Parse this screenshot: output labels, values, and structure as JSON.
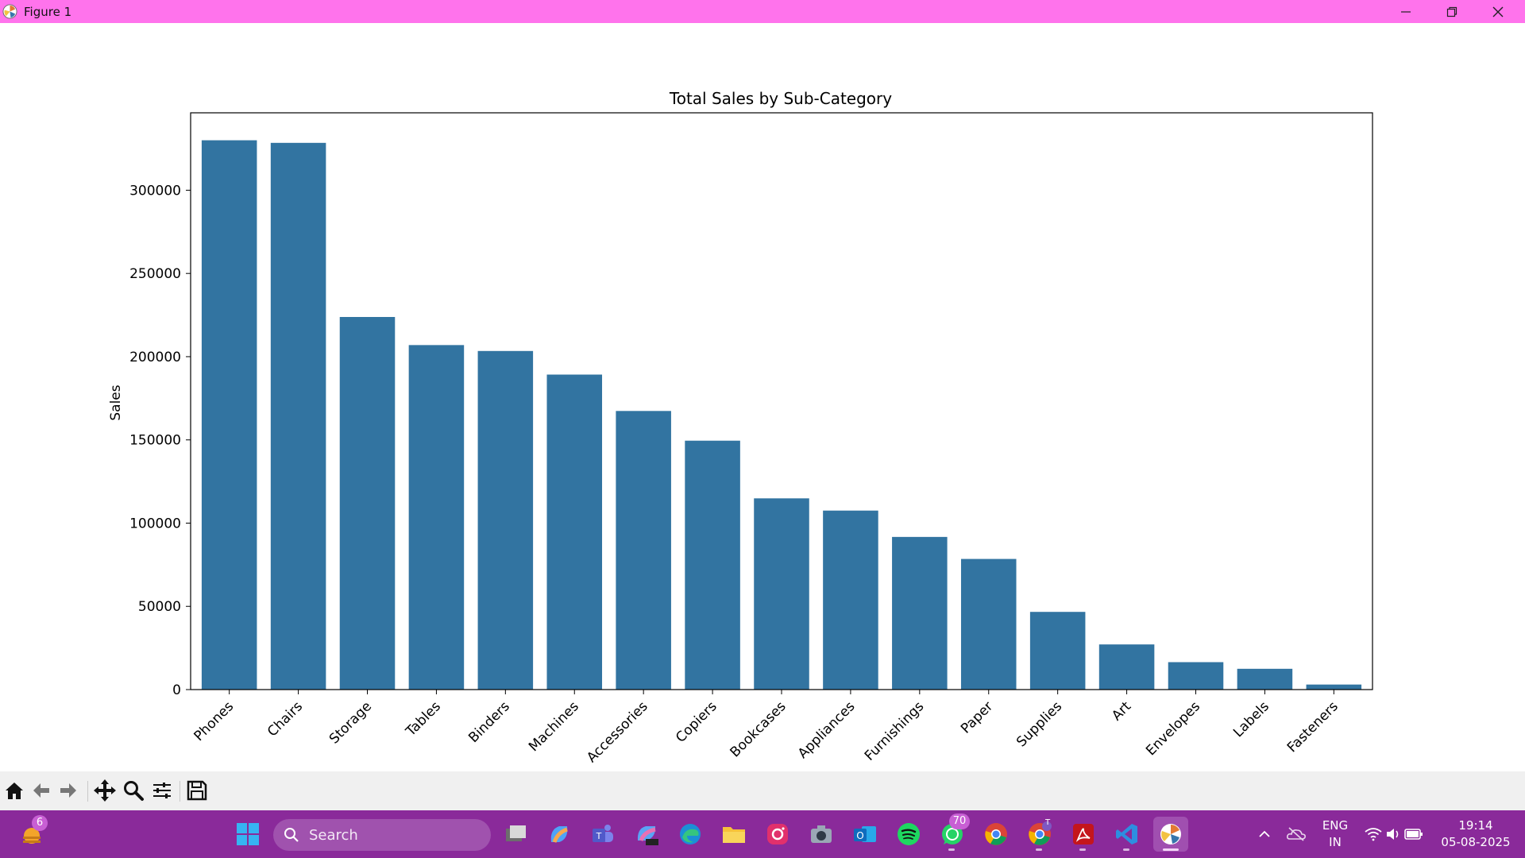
{
  "window": {
    "title": "Figure 1"
  },
  "chart_data": {
    "type": "bar",
    "title": "Total Sales by Sub-Category",
    "xlabel": "",
    "ylabel": "Sales",
    "categories": [
      "Phones",
      "Chairs",
      "Storage",
      "Tables",
      "Binders",
      "Machines",
      "Accessories",
      "Copiers",
      "Bookcases",
      "Appliances",
      "Furnishings",
      "Paper",
      "Supplies",
      "Art",
      "Envelopes",
      "Labels",
      "Fasteners"
    ],
    "values": [
      330007,
      328449,
      223844,
      206966,
      203413,
      189239,
      167380,
      149528,
      114880,
      107532,
      91705,
      78479,
      46674,
      27119,
      16476,
      12486,
      3024
    ],
    "yticks": [
      "0",
      "50000",
      "100000",
      "150000",
      "200000",
      "250000",
      "300000"
    ],
    "ylim": [
      0,
      346500
    ],
    "bar_color": "#3274a1",
    "grid": false,
    "legend": "none"
  },
  "toolbar": {
    "icons": [
      "home-icon",
      "back-arrow-icon",
      "forward-arrow-icon",
      "pan-icon",
      "zoom-icon",
      "configure-subplots-icon",
      "save-icon"
    ]
  },
  "taskbar": {
    "search_placeholder": "Search",
    "widgets_badge": "6",
    "whatsapp_badge": "70",
    "chrome_profile_letter": "T",
    "language_line1": "ENG",
    "language_line2": "IN",
    "time": "19:14",
    "date": "05-08-2025"
  },
  "colors": {
    "titlebar": "#ff73ec",
    "taskbar": "#8a2a9a",
    "toolbar": "#f0f0f0"
  }
}
